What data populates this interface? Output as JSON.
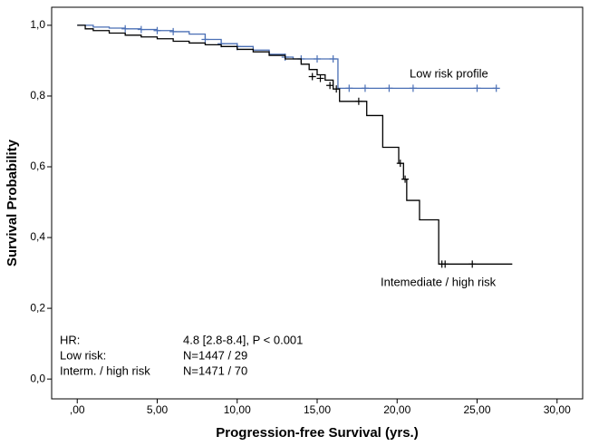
{
  "chart_data": {
    "type": "kaplan-meier",
    "x_label": "Progression-free Survival (yrs.)",
    "y_label": "Survival Probability",
    "xlim": [
      -1.6,
      31.6
    ],
    "ylim": [
      -0.056,
      1.051
    ],
    "xticks": [
      {
        "value": 0,
        "label": ",00"
      },
      {
        "value": 5,
        "label": "5,00"
      },
      {
        "value": 10,
        "label": "10,00"
      },
      {
        "value": 15,
        "label": "15,00"
      },
      {
        "value": 20,
        "label": "20,00"
      },
      {
        "value": 25,
        "label": "25,00"
      },
      {
        "value": 30,
        "label": "30,00"
      }
    ],
    "yticks": [
      {
        "value": 0,
        "label": "0,0"
      },
      {
        "value": 0.2,
        "label": "0,2"
      },
      {
        "value": 0.4,
        "label": "0,4"
      },
      {
        "value": 0.6,
        "label": "0,6"
      },
      {
        "value": 0.8,
        "label": "0,8"
      },
      {
        "value": 1.0,
        "label": "1,0"
      }
    ],
    "series": [
      {
        "name": "Low risk profile",
        "color": "#4a6fb5",
        "x": [
          0,
          1,
          2,
          3,
          4,
          5,
          6,
          7,
          8,
          9,
          10,
          11,
          12,
          13,
          13.5,
          16.3,
          26.2
        ],
        "values": [
          1.0,
          0.995,
          0.992,
          0.99,
          0.988,
          0.985,
          0.982,
          0.975,
          0.96,
          0.948,
          0.94,
          0.93,
          0.918,
          0.91,
          0.905,
          0.822,
          0.822
        ],
        "censored_x": [
          3,
          4,
          5,
          6,
          8,
          9,
          10,
          13,
          14,
          15,
          16,
          17,
          18,
          19.5,
          21,
          25,
          26.2
        ],
        "censored_y": [
          0.99,
          0.988,
          0.985,
          0.982,
          0.96,
          0.948,
          0.94,
          0.91,
          0.905,
          0.905,
          0.905,
          0.822,
          0.822,
          0.822,
          0.822,
          0.822,
          0.822
        ]
      },
      {
        "name": "Intemediate / high risk",
        "color": "#000000",
        "x": [
          0,
          0.5,
          1,
          2,
          3,
          4,
          5,
          6,
          7,
          8,
          9,
          10,
          11,
          12,
          13,
          14,
          14.5,
          15,
          15.5,
          16,
          16.4,
          18.1,
          19.1,
          20.1,
          20.4,
          20.6,
          21.4,
          22.6,
          27.2
        ],
        "values": [
          1.0,
          0.99,
          0.985,
          0.978,
          0.972,
          0.967,
          0.962,
          0.955,
          0.95,
          0.945,
          0.94,
          0.932,
          0.925,
          0.915,
          0.905,
          0.89,
          0.875,
          0.86,
          0.845,
          0.82,
          0.785,
          0.745,
          0.655,
          0.61,
          0.565,
          0.505,
          0.45,
          0.325,
          0.325
        ],
        "censored_x": [
          14.7,
          15.2,
          15.8,
          16.2,
          17.6,
          20.2,
          20.5,
          22.8,
          23.0,
          24.7
        ],
        "censored_y": [
          0.855,
          0.85,
          0.83,
          0.82,
          0.785,
          0.61,
          0.565,
          0.325,
          0.325,
          0.325
        ]
      }
    ],
    "annotations": [
      "HR:",
      "4.8 [2.8-8.4], P < 0.001",
      "Low risk:",
      "N=1447 / 29",
      "Interm. / high risk",
      "N=1471 / 70"
    ]
  }
}
